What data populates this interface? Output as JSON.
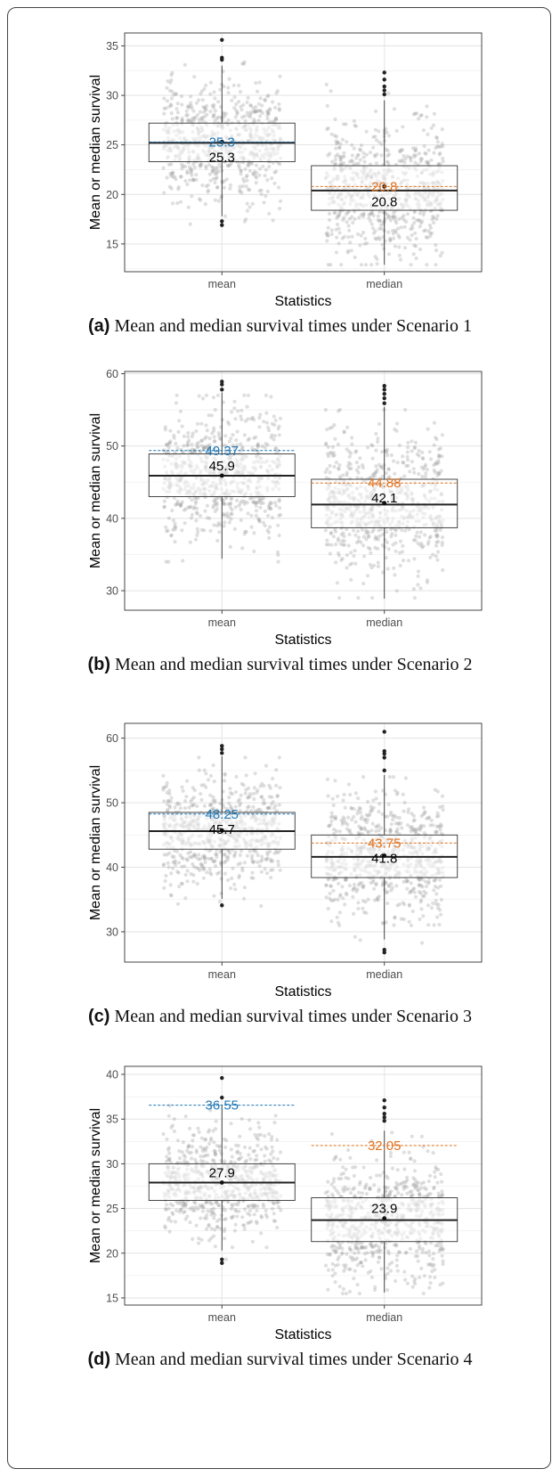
{
  "chart_data": [
    {
      "type": "box",
      "tag": "(a)",
      "caption": "Mean and median survival times under Scenario 1",
      "xlabel": "Statistics",
      "ylabel": "Mean or median survival",
      "categories": [
        "mean",
        "median"
      ],
      "ylim": [
        12.2,
        36.3
      ],
      "yticks": [
        15,
        20,
        25,
        30,
        35
      ],
      "boxes": [
        {
          "q1": 23.3,
          "median": 25.2,
          "q3": 27.2,
          "whisker_low": 17.8,
          "whisker_high": 33.0,
          "mean": 25.3,
          "points_min": 17.0,
          "points_max": 33.5,
          "outliers": [
            35.6,
            33.8,
            33.6,
            17.3,
            16.9
          ]
        },
        {
          "q1": 18.4,
          "median": 20.4,
          "q3": 22.9,
          "whisker_low": 12.9,
          "whisker_high": 29.5,
          "mean": 20.8,
          "points_min": 12.9,
          "points_max": 31.8,
          "outliers": [
            32.3,
            31.6,
            30.9,
            30.5,
            30.1
          ]
        }
      ],
      "mean_labels": [
        "25.3",
        "20.8"
      ],
      "reference_lines": [
        {
          "category": "mean",
          "value": 25.3,
          "label": "25.3",
          "color": "#1f77b4"
        },
        {
          "category": "median",
          "value": 20.8,
          "label": "20.8",
          "color": "#e0721f"
        }
      ]
    },
    {
      "type": "box",
      "tag": "(b)",
      "caption": "Mean and median survival times under Scenario 2",
      "xlabel": "Statistics",
      "ylabel": "Mean or median survival",
      "categories": [
        "mean",
        "median"
      ],
      "ylim": [
        27.3,
        60.3
      ],
      "yticks": [
        30,
        40,
        50,
        60
      ],
      "boxes": [
        {
          "q1": 43.0,
          "median": 45.9,
          "q3": 48.9,
          "whisker_low": 34.4,
          "whisker_high": 57.4,
          "mean": 45.9,
          "points_min": 34.0,
          "points_max": 57.0,
          "outliers": [
            58.9,
            58.5,
            57.8
          ]
        },
        {
          "q1": 38.7,
          "median": 41.9,
          "q3": 45.4,
          "whisker_low": 28.9,
          "whisker_high": 55.4,
          "mean": 42.1,
          "points_min": 29.0,
          "points_max": 55.0,
          "outliers": [
            58.3,
            57.8,
            57.2,
            56.6,
            55.9
          ]
        }
      ],
      "mean_labels": [
        "45.9",
        "42.1"
      ],
      "reference_lines": [
        {
          "category": "mean",
          "value": 49.37,
          "label": "49.37",
          "color": "#1f77b4"
        },
        {
          "category": "median",
          "value": 44.88,
          "label": "44.88",
          "color": "#e0721f"
        }
      ]
    },
    {
      "type": "box",
      "tag": "(c)",
      "caption": "Mean and median survival times under Scenario 3",
      "xlabel": "Statistics",
      "ylabel": "Mean or median survival",
      "categories": [
        "mean",
        "median"
      ],
      "ylim": [
        25.3,
        62.3
      ],
      "yticks": [
        30,
        40,
        50,
        60
      ],
      "boxes": [
        {
          "q1": 42.8,
          "median": 45.6,
          "q3": 48.5,
          "whisker_low": 35.1,
          "whisker_high": 57.2,
          "mean": 45.7,
          "points_min": 34.0,
          "points_max": 57.0,
          "outliers": [
            58.8,
            58.3,
            57.7,
            34.1
          ]
        },
        {
          "q1": 38.4,
          "median": 41.6,
          "q3": 45.0,
          "whisker_low": 28.8,
          "whisker_high": 54.3,
          "mean": 41.8,
          "points_min": 27.0,
          "points_max": 54.0,
          "outliers": [
            61.0,
            58.0,
            57.6,
            57.0,
            55.0,
            27.2,
            26.8
          ]
        }
      ],
      "mean_labels": [
        "45.7",
        "41.8"
      ],
      "reference_lines": [
        {
          "category": "mean",
          "value": 48.25,
          "label": "48.25",
          "color": "#1f77b4"
        },
        {
          "category": "median",
          "value": 43.75,
          "label": "43.75",
          "color": "#e0721f"
        }
      ]
    },
    {
      "type": "box",
      "tag": "(d)",
      "caption": "Mean and median survival times under Scenario 4",
      "xlabel": "Statistics",
      "ylabel": "Mean or median survival",
      "categories": [
        "mean",
        "median"
      ],
      "ylim": [
        14.2,
        40.9
      ],
      "yticks": [
        15,
        20,
        25,
        30,
        35,
        40
      ],
      "boxes": [
        {
          "q1": 25.9,
          "median": 27.9,
          "q3": 30.0,
          "whisker_low": 20.3,
          "whisker_high": 36.6,
          "mean": 27.9,
          "points_min": 19.0,
          "points_max": 36.5,
          "outliers": [
            39.6,
            37.4,
            19.3,
            18.9
          ]
        },
        {
          "q1": 21.3,
          "median": 23.7,
          "q3": 26.2,
          "whisker_low": 15.6,
          "whisker_high": 33.7,
          "mean": 23.9,
          "points_min": 15.5,
          "points_max": 33.5,
          "outliers": [
            37.1,
            36.3,
            35.6,
            35.2,
            34.8
          ]
        }
      ],
      "mean_labels": [
        "27.9",
        "23.9"
      ],
      "reference_lines": [
        {
          "category": "mean",
          "value": 36.55,
          "label": "36.55",
          "color": "#1f77b4"
        },
        {
          "category": "median",
          "value": 32.05,
          "label": "32.05",
          "color": "#e0721f"
        }
      ]
    }
  ]
}
